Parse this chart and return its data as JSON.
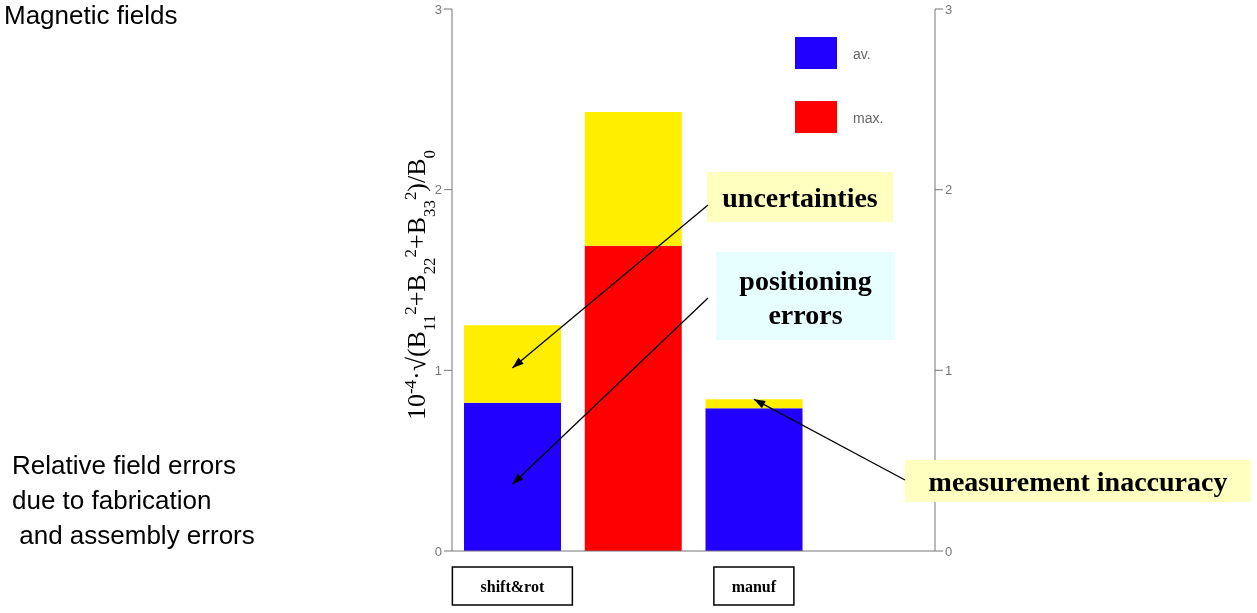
{
  "chart_data": {
    "type": "bar",
    "title": "Magnetic fields",
    "ylabel": "10$^{-4}$·√(B$_{11}$$^{2}$+B$_{22}$$^{2}$+B$_{33}$$^{2}$)/B$_{0}$",
    "categories": [
      "shift&rot",
      null,
      "manuf",
      null
    ],
    "stacked": true,
    "series": [
      {
        "name": "av.",
        "color": "#2200ff",
        "values": [
          0.82,
          null,
          0.79,
          null
        ]
      },
      {
        "name": "max.",
        "color": "#ff0000",
        "values": [
          null,
          1.69,
          null,
          null
        ]
      },
      {
        "color": "#ffee00",
        "values": [
          0.43,
          0.74,
          0.05,
          null
        ]
      }
    ],
    "ylim": [
      0,
      3
    ],
    "yticks": [
      0,
      1,
      2,
      3
    ],
    "y2lim": [
      0,
      3
    ],
    "y2ticks": [
      0,
      1,
      2,
      3
    ],
    "grid": false,
    "legend": "top right",
    "annotations": [
      "uncertainties",
      "positioning errors",
      {
        "text": "measurement inaccuracy",
        "x": "manuf",
        "y": 0.84
      },
      "Relative field errors\ndue to fabrication\n and assembly errors"
    ]
  }
}
